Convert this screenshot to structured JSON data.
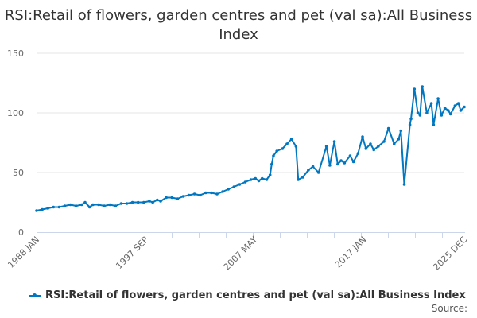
{
  "chart_data": {
    "type": "line",
    "title": "RSI:Retail of flowers, garden centres and pet (val sa):All Business Index",
    "xlabel": "",
    "ylabel": "",
    "xlim": [
      1988.0,
      2025.92
    ],
    "ylim": [
      0,
      150
    ],
    "yticks": [
      0,
      50,
      100,
      150
    ],
    "xticks": [
      {
        "label": "1988 JAN",
        "x": 1988.0
      },
      {
        "label": "1997 SEP",
        "x": 1997.67
      },
      {
        "label": "2007 MAY",
        "x": 2007.33
      },
      {
        "label": "2017 JAN",
        "x": 2017.0
      },
      {
        "label": "2025 DEC",
        "x": 2025.92
      }
    ],
    "grid": true,
    "legend_position": "bottom",
    "color": "#0077c0",
    "series": [
      {
        "name": "RSI:Retail of flowers, garden centres and pet (val sa):All Business Index",
        "x": [
          1988.0,
          1988.5,
          1989.0,
          1989.5,
          1990.0,
          1990.5,
          1991.0,
          1991.5,
          1992.0,
          1992.3,
          1992.7,
          1993.0,
          1993.5,
          1994.0,
          1994.5,
          1995.0,
          1995.5,
          1996.0,
          1996.5,
          1997.0,
          1997.5,
          1998.0,
          1998.3,
          1998.7,
          1999.0,
          1999.5,
          2000.0,
          2000.5,
          2001.0,
          2001.5,
          2002.0,
          2002.5,
          2003.0,
          2003.5,
          2004.0,
          2004.5,
          2005.0,
          2005.5,
          2006.0,
          2006.5,
          2007.0,
          2007.4,
          2007.7,
          2008.0,
          2008.4,
          2008.7,
          2008.85,
          2009.0,
          2009.3,
          2009.8,
          2010.2,
          2010.6,
          2011.0,
          2011.2,
          2011.6,
          2012.1,
          2012.5,
          2013.0,
          2013.7,
          2014.0,
          2014.4,
          2014.7,
          2015.0,
          2015.3,
          2015.8,
          2016.1,
          2016.5,
          2016.9,
          2017.2,
          2017.6,
          2017.9,
          2018.3,
          2018.8,
          2019.2,
          2019.7,
          2020.1,
          2020.3,
          2020.6,
          2021.1,
          2021.2,
          2021.5,
          2021.8,
          2022.0,
          2022.2,
          2022.6,
          2023.0,
          2023.2,
          2023.6,
          2023.9,
          2024.2,
          2024.5,
          2024.7,
          2025.1,
          2025.4,
          2025.6,
          2025.92
        ],
        "values": [
          18,
          19,
          20,
          21,
          21,
          22,
          23,
          22,
          23,
          25,
          21,
          23,
          23,
          22,
          23,
          22,
          24,
          24,
          25,
          25,
          25,
          26,
          25,
          27,
          26,
          29,
          29,
          28,
          30,
          31,
          32,
          31,
          33,
          33,
          32,
          34,
          36,
          38,
          40,
          42,
          44,
          45,
          43,
          45,
          44,
          48,
          57,
          64,
          68,
          70,
          74,
          78,
          72,
          44,
          46,
          52,
          55,
          50,
          72,
          56,
          76,
          57,
          60,
          58,
          64,
          59,
          66,
          80,
          70,
          74,
          69,
          72,
          76,
          87,
          74,
          78,
          85,
          40,
          90,
          95,
          120,
          100,
          98,
          122,
          100,
          108,
          90,
          112,
          98,
          104,
          102,
          99,
          106,
          108,
          102,
          105
        ]
      }
    ]
  },
  "legend": {
    "label": "RSI:Retail of flowers, garden centres and pet (val sa):All Business Index"
  },
  "source": "Source:"
}
